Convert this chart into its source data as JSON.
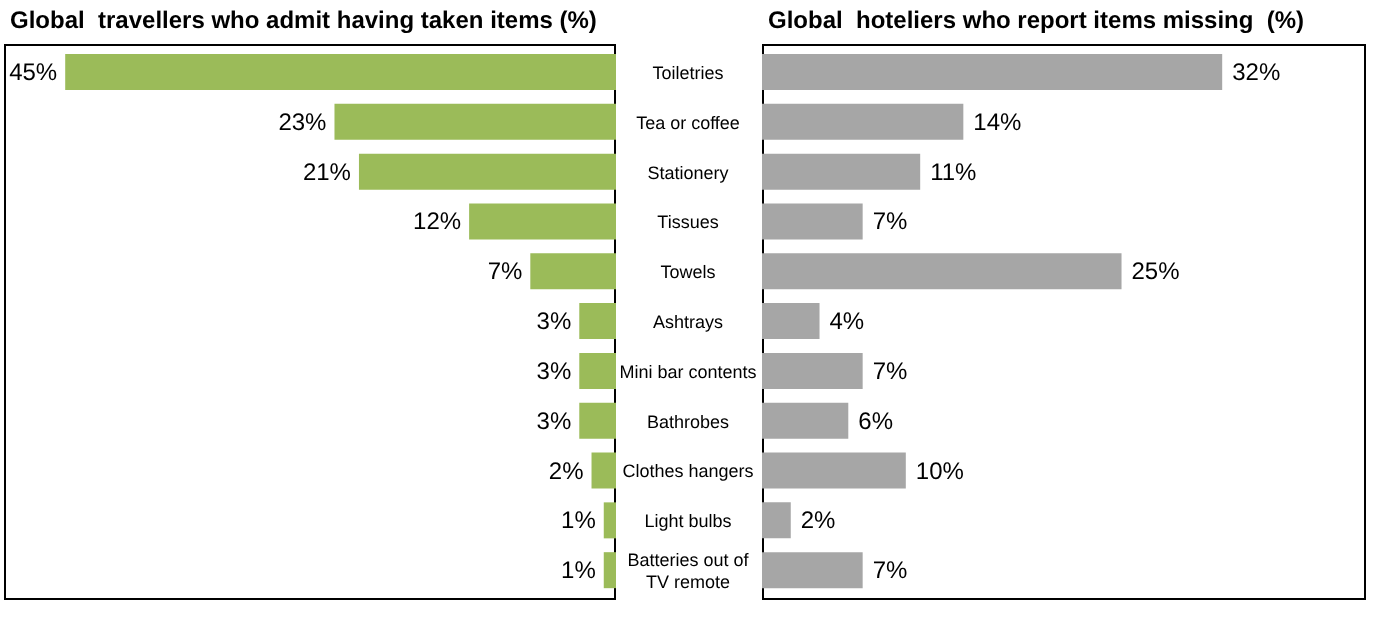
{
  "chart_data": [
    {
      "type": "bar",
      "orientation": "horizontal",
      "title": "Global  travellers who admit having taken items (%)",
      "categories": [
        "Toiletries",
        "Tea or coffee",
        "Stationery",
        "Tissues",
        "Towels",
        "Ashtrays",
        "Mini bar contents",
        "Bathrobes",
        "Clothes hangers",
        "Light bulbs",
        "Batteries out of TV remote"
      ],
      "values": [
        45,
        23,
        21,
        12,
        7,
        3,
        3,
        3,
        2,
        1,
        1
      ],
      "value_labels": [
        "45%",
        "23%",
        "21%",
        "12%",
        "7%",
        "3%",
        "3%",
        "3%",
        "2%",
        "1%",
        "1%"
      ],
      "color": "#9bbb59",
      "xlim": [
        50,
        0
      ],
      "tick_labels": "y"
    },
    {
      "type": "bar",
      "orientation": "horizontal",
      "title": "Global  hoteliers who report items missing  (%)",
      "categories": [
        null,
        null,
        null,
        null,
        null,
        null,
        null,
        null,
        null,
        null,
        null
      ],
      "values": [
        32,
        14,
        11,
        7,
        25,
        4,
        7,
        6,
        10,
        2,
        7
      ],
      "value_labels": [
        "32%",
        "14%",
        "11%",
        "7%",
        "25%",
        "4%",
        "7%",
        "6%",
        "10%",
        "2%",
        "7%"
      ],
      "color": "#a6a6a6",
      "xlim": [
        0,
        42
      ],
      "tick_labels": false
    }
  ]
}
